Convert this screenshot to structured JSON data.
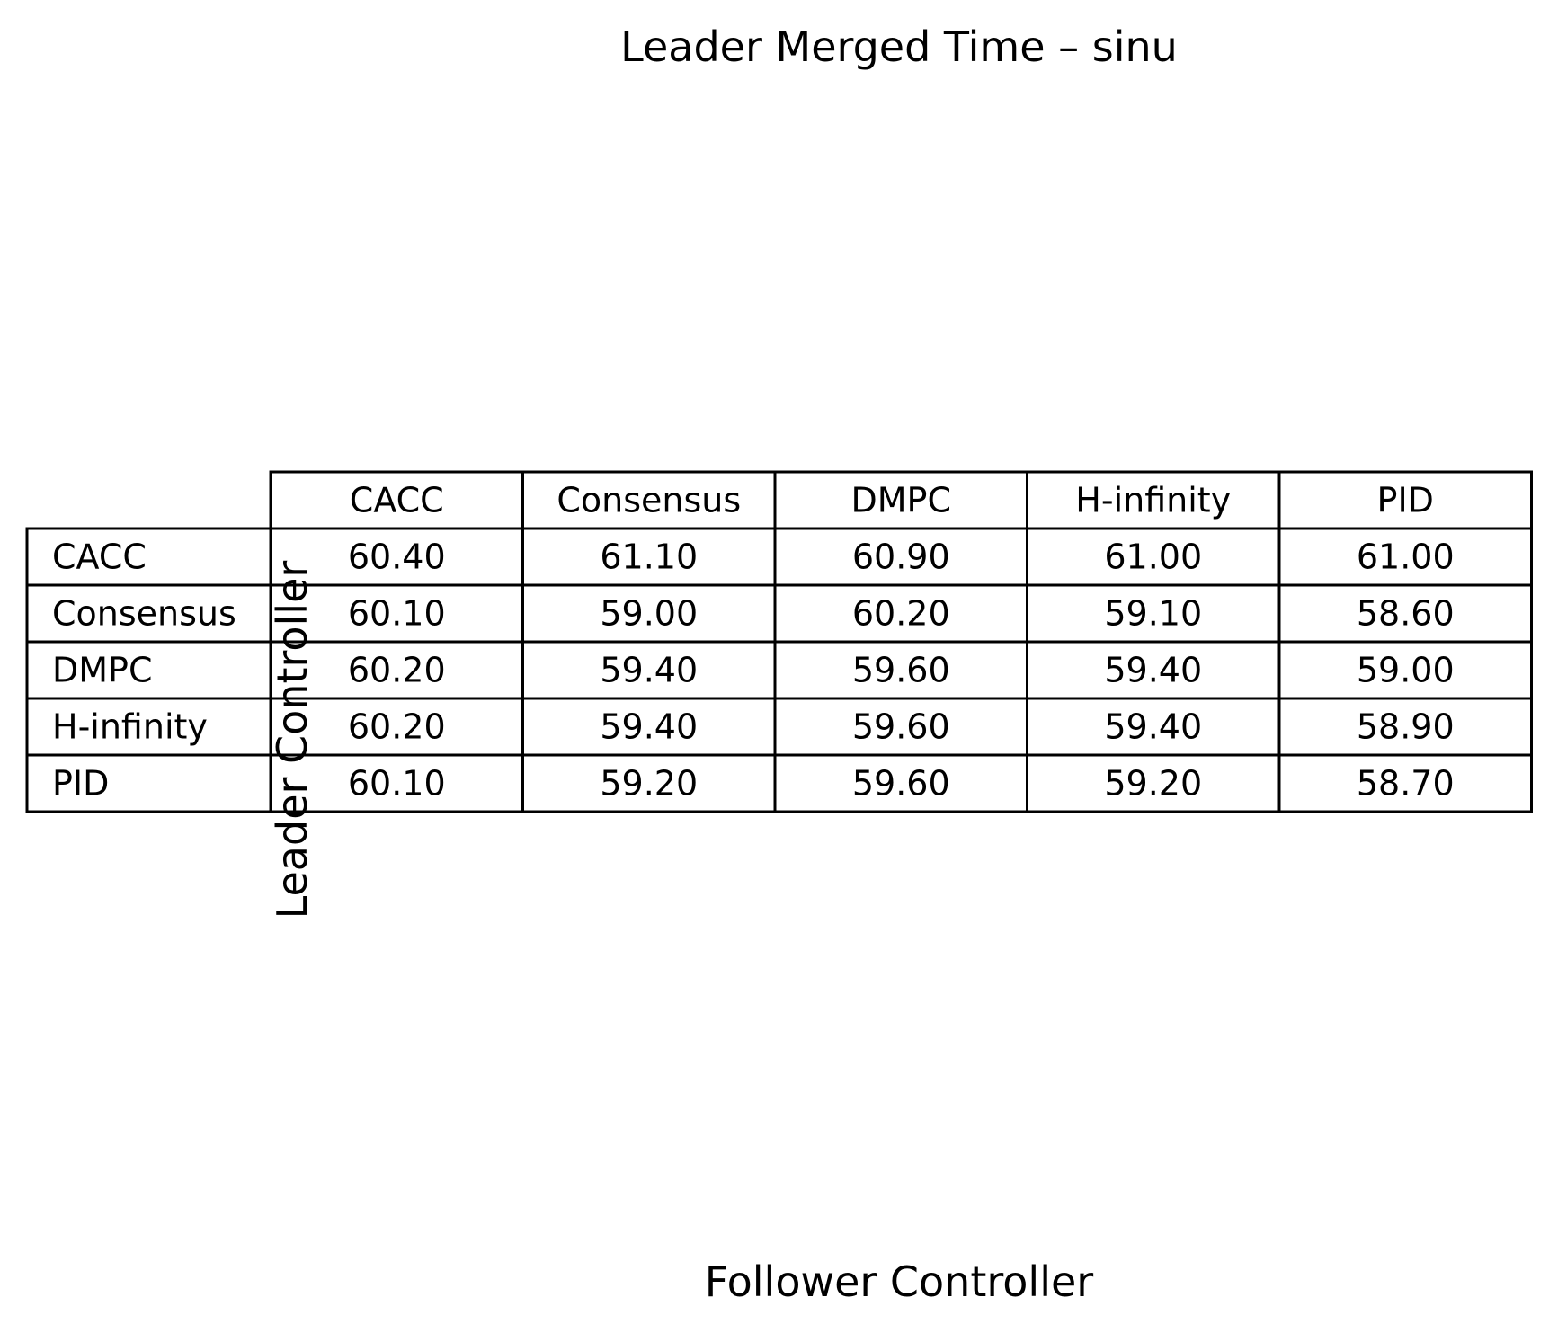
{
  "chart_data": {
    "type": "table",
    "title": "Leader Merged Time – sinu",
    "xlabel": "Follower Controller",
    "ylabel": "Leader Controller",
    "columns": [
      "CACC",
      "Consensus",
      "DMPC",
      "H-infinity",
      "PID"
    ],
    "rows": [
      "CACC",
      "Consensus",
      "DMPC",
      "H-infinity",
      "PID"
    ],
    "values": [
      [
        "60.40",
        "61.10",
        "60.90",
        "61.00",
        "61.00"
      ],
      [
        "60.10",
        "59.00",
        "60.20",
        "59.10",
        "58.60"
      ],
      [
        "60.20",
        "59.40",
        "59.60",
        "59.40",
        "59.00"
      ],
      [
        "60.20",
        "59.40",
        "59.60",
        "59.40",
        "58.90"
      ],
      [
        "60.10",
        "59.20",
        "59.60",
        "59.20",
        "58.70"
      ]
    ]
  }
}
